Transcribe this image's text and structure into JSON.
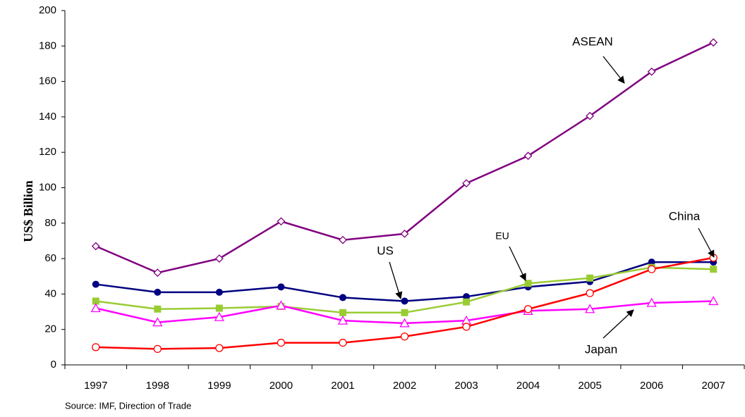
{
  "chart_data": {
    "type": "line",
    "y_label": "US$ Billion",
    "source": "Source:  IMF, Direction of Trade",
    "categories": [
      "1997",
      "1998",
      "1999",
      "2000",
      "2001",
      "2002",
      "2003",
      "2004",
      "2005",
      "2006",
      "2007"
    ],
    "ylim": [
      0,
      200
    ],
    "yticks": [
      0,
      20,
      40,
      60,
      80,
      100,
      120,
      140,
      160,
      180,
      200
    ],
    "series": [
      {
        "name": "ASEAN",
        "color": "#800080",
        "marker": "diamond",
        "values": [
          67,
          52,
          60,
          81,
          70.5,
          74,
          102.5,
          118,
          140.5,
          165.5,
          182
        ]
      },
      {
        "name": "US",
        "color": "#000080",
        "marker": "circle-filled",
        "values": [
          45.5,
          41,
          41,
          44,
          38,
          36,
          38.5,
          44,
          47,
          58,
          58
        ]
      },
      {
        "name": "EU",
        "color": "#99cc33",
        "marker": "square",
        "values": [
          36,
          31.5,
          32,
          33,
          29.5,
          29.5,
          35.5,
          46,
          49,
          55,
          54
        ]
      },
      {
        "name": "Japan",
        "color": "#ff00ff",
        "marker": "triangle",
        "values": [
          32,
          24,
          27,
          33.5,
          25,
          23.5,
          25,
          30.5,
          31.5,
          35,
          36
        ]
      },
      {
        "name": "China",
        "color": "#ff0000",
        "marker": "circle-open",
        "values": [
          10,
          9,
          9.5,
          12.5,
          12.5,
          16,
          21.5,
          31.5,
          40.5,
          54,
          60.5
        ]
      }
    ]
  }
}
